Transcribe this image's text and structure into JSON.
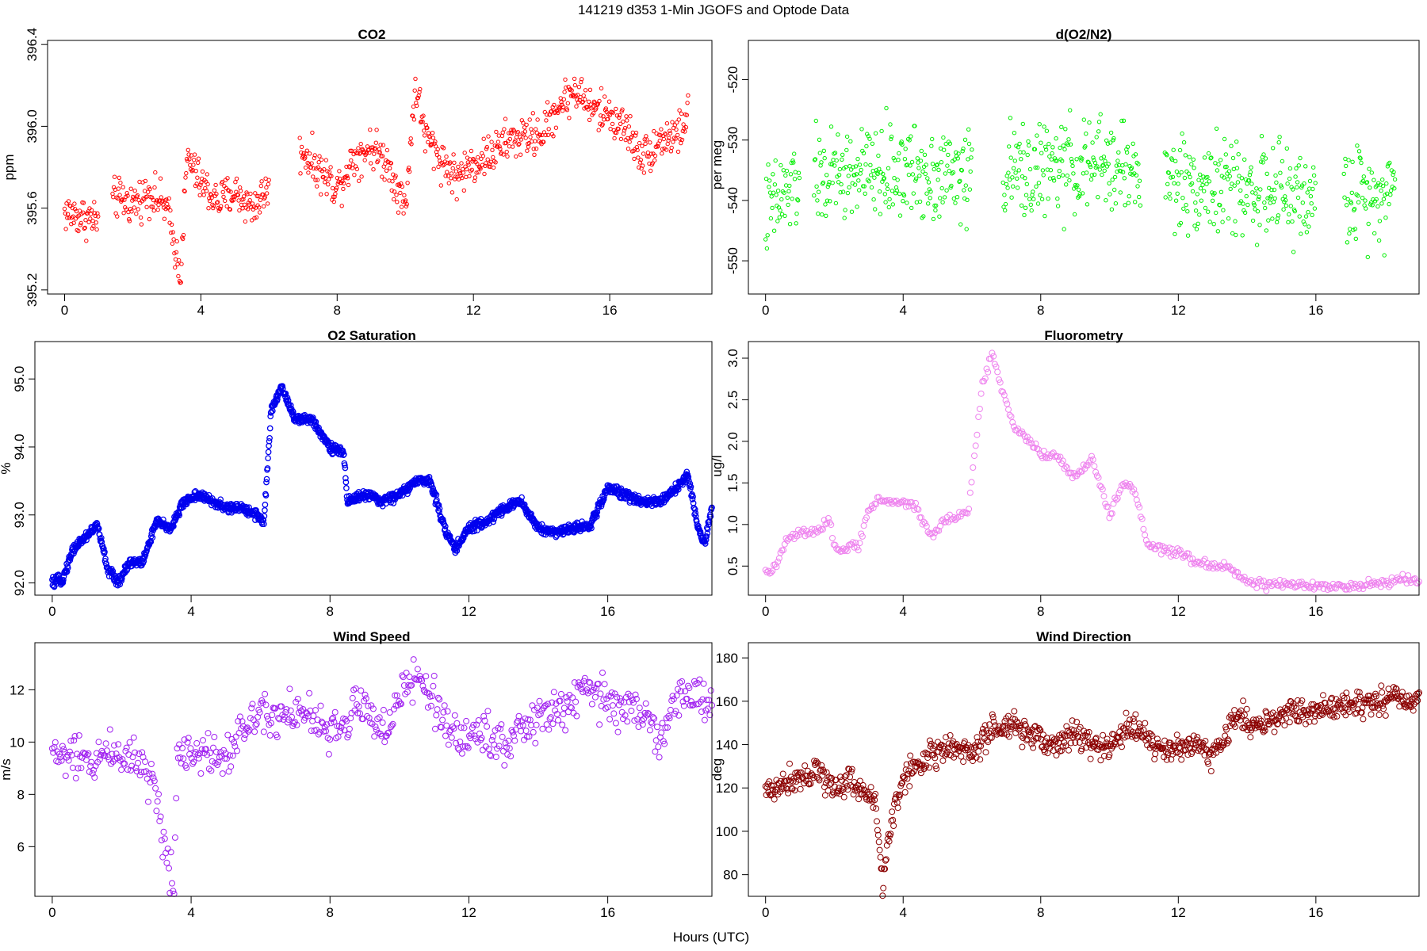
{
  "figure": {
    "title": "141219   d353   1-Min  JGOFS and Optode Data",
    "xlabel": "Hours (UTC)"
  },
  "chart_data": [
    {
      "id": "co2",
      "type": "scatter",
      "title": "CO2",
      "ylabel": "ppm",
      "color": "#ff0000",
      "xlim": [
        -0.5,
        19
      ],
      "ylim": [
        395.18,
        396.42
      ],
      "xticks": [
        0,
        4,
        8,
        12,
        16
      ],
      "yticks": [
        395.2,
        395.6,
        396.0,
        396.4
      ],
      "ytick_labels": [
        "395.2",
        "395.6",
        "396.0",
        "396.4"
      ],
      "ytick_rotated": true,
      "marker_size": 2.2,
      "stroke_width": 1,
      "x_range": [
        0,
        18.3
      ],
      "n_points": 950,
      "gaps": [
        [
          1.0,
          1.4
        ],
        [
          6.0,
          6.9
        ]
      ],
      "trend_x": [
        0,
        0.5,
        1,
        1.5,
        2,
        2.5,
        3,
        3.4,
        3.6,
        4,
        4.5,
        5,
        5.5,
        6,
        7,
        7.5,
        8,
        8.5,
        9,
        9.5,
        10,
        10.3,
        10.6,
        11,
        11.5,
        12,
        12.5,
        13,
        13.5,
        14,
        14.5,
        15,
        15.5,
        16,
        16.5,
        17,
        17.5,
        18,
        18.3
      ],
      "trend_y": [
        395.58,
        395.56,
        395.54,
        395.65,
        395.62,
        395.68,
        395.6,
        395.28,
        395.85,
        395.72,
        395.63,
        395.68,
        395.6,
        395.7,
        395.88,
        395.78,
        395.7,
        395.85,
        395.9,
        395.82,
        395.6,
        396.2,
        395.95,
        395.85,
        395.75,
        395.82,
        395.86,
        395.93,
        395.95,
        395.96,
        396.1,
        396.18,
        396.08,
        396.06,
        395.98,
        395.85,
        395.94,
        395.96,
        396.05
      ],
      "noise": 0.07,
      "x_offset": 0
    },
    {
      "id": "o2n2",
      "type": "scatter",
      "title": "d(O2/N2)",
      "ylabel": "per meg",
      "color": "#00ee00",
      "xlim": [
        -0.5,
        19
      ],
      "ylim": [
        -555.5,
        -513.5
      ],
      "xticks": [
        0,
        4,
        8,
        12,
        16
      ],
      "yticks": [
        -550,
        -540,
        -530,
        -520
      ],
      "ytick_labels": [
        "-550",
        "-540",
        "-530",
        "-520"
      ],
      "ytick_rotated": true,
      "marker_size": 2.2,
      "stroke_width": 1,
      "x_range": [
        0,
        18.3
      ],
      "n_points": 950,
      "gaps": [
        [
          1.0,
          1.4
        ],
        [
          6.0,
          6.9
        ],
        [
          10.9,
          11.6
        ],
        [
          16.0,
          16.8
        ]
      ],
      "trend_x": [
        0,
        1,
        2,
        4,
        6,
        8,
        10,
        12,
        14,
        16,
        18.3
      ],
      "trend_y": [
        -542,
        -537,
        -536,
        -535,
        -536,
        -535,
        -534,
        -537,
        -538,
        -540,
        -538
      ],
      "noise": 5.5,
      "x_offset": 0
    },
    {
      "id": "o2sat",
      "type": "scatter",
      "title": "O2 Saturation",
      "ylabel": "%",
      "color": "#0000ee",
      "xlim": [
        -0.5,
        19
      ],
      "ylim": [
        91.82,
        95.55
      ],
      "xticks": [
        0,
        4,
        8,
        12,
        16
      ],
      "yticks": [
        92.0,
        93.0,
        94.0,
        95.0
      ],
      "ytick_labels": [
        "92.0",
        "93.0",
        "94.0",
        "95.0"
      ],
      "ytick_rotated": true,
      "marker_size": 3.2,
      "stroke_width": 1.3,
      "x_range": [
        0,
        19
      ],
      "n_points": 1600,
      "gaps": [],
      "trend_x": [
        0,
        0.3,
        0.6,
        1.0,
        1.3,
        1.6,
        1.9,
        2.2,
        2.6,
        3.0,
        3.4,
        3.8,
        4.2,
        4.6,
        5.0,
        5.5,
        5.9,
        6.1,
        6.3,
        6.6,
        7.0,
        7.5,
        8.0,
        8.4,
        8.5,
        9.0,
        9.5,
        10.0,
        10.5,
        10.9,
        11.3,
        11.6,
        12.0,
        12.5,
        13.0,
        13.5,
        14.0,
        14.5,
        15.0,
        15.5,
        16.0,
        16.5,
        17.0,
        17.5,
        18.0,
        18.3,
        18.6,
        18.8,
        19.0
      ],
      "trend_y": [
        92.0,
        92.05,
        92.5,
        92.7,
        92.85,
        92.2,
        92.0,
        92.3,
        92.3,
        92.9,
        92.8,
        93.2,
        93.3,
        93.2,
        93.1,
        93.1,
        93.0,
        92.9,
        94.5,
        94.9,
        94.4,
        94.4,
        94.0,
        93.9,
        93.2,
        93.3,
        93.2,
        93.3,
        93.5,
        93.5,
        92.8,
        92.5,
        92.8,
        92.9,
        93.1,
        93.2,
        92.8,
        92.75,
        92.8,
        92.85,
        93.4,
        93.3,
        93.2,
        93.2,
        93.4,
        93.6,
        92.8,
        92.6,
        93.1
      ],
      "noise": 0.05,
      "x_offset": 0
    },
    {
      "id": "fluor",
      "type": "scatter",
      "title": "Fluorometry",
      "ylabel": "ug/l",
      "color": "#ee82ee",
      "xlim": [
        -0.5,
        19
      ],
      "ylim": [
        0.15,
        3.2
      ],
      "xticks": [
        0,
        4,
        8,
        12,
        16
      ],
      "yticks": [
        0.5,
        1.0,
        1.5,
        2.0,
        2.5,
        3.0
      ],
      "ytick_labels": [
        "0.5",
        "1.0",
        "1.5",
        "2.0",
        "2.5",
        "3.0"
      ],
      "ytick_rotated": true,
      "marker_size": 3.5,
      "stroke_width": 1,
      "x_range": [
        0,
        19
      ],
      "n_points": 480,
      "gaps": [],
      "trend_x": [
        0,
        0.3,
        0.6,
        1.0,
        1.5,
        1.9,
        2.0,
        2.3,
        2.7,
        3.0,
        3.4,
        3.8,
        4.0,
        4.4,
        4.8,
        5.1,
        5.5,
        5.9,
        6.3,
        6.6,
        6.9,
        7.3,
        7.6,
        8.0,
        8.5,
        9.0,
        9.5,
        10.0,
        10.4,
        10.7,
        11.1,
        11.5,
        12.0,
        12.5,
        13.0,
        13.5,
        14.0,
        14.5,
        15.0,
        15.5,
        16.0,
        16.5,
        17.0,
        17.5,
        18.0,
        18.5,
        19.0
      ],
      "trend_y": [
        0.4,
        0.5,
        0.8,
        0.9,
        0.9,
        1.05,
        0.7,
        0.7,
        0.75,
        1.2,
        1.3,
        1.25,
        1.28,
        1.2,
        0.85,
        1.0,
        1.1,
        1.15,
        2.7,
        3.05,
        2.6,
        2.1,
        2.05,
        1.85,
        1.8,
        1.55,
        1.8,
        1.1,
        1.5,
        1.45,
        0.75,
        0.7,
        0.65,
        0.55,
        0.5,
        0.5,
        0.3,
        0.28,
        0.27,
        0.27,
        0.25,
        0.28,
        0.25,
        0.27,
        0.3,
        0.35,
        0.28
      ],
      "noise": 0.04,
      "x_offset": 0
    },
    {
      "id": "wspd",
      "type": "scatter",
      "title": "Wind Speed",
      "ylabel": "m/s",
      "color": "#a020f0",
      "xlim": [
        -0.5,
        19
      ],
      "ylim": [
        4.1,
        13.8
      ],
      "xticks": [
        0,
        4,
        8,
        12,
        16
      ],
      "yticks": [
        6,
        8,
        10,
        12
      ],
      "ytick_labels": [
        "6",
        "8",
        "10",
        "12"
      ],
      "ytick_rotated": false,
      "marker_size": 3.5,
      "stroke_width": 1,
      "x_range": [
        0,
        19
      ],
      "n_points": 640,
      "gaps": [],
      "trend_x": [
        0,
        0.5,
        1.0,
        1.5,
        2.0,
        2.5,
        2.9,
        3.2,
        3.5,
        3.6,
        4.0,
        4.5,
        5.0,
        5.5,
        6.0,
        6.5,
        7.0,
        7.5,
        8.0,
        8.5,
        9.0,
        9.5,
        10.0,
        10.5,
        11.0,
        11.5,
        12.0,
        12.5,
        13.0,
        13.5,
        14.0,
        14.5,
        15.0,
        15.5,
        16.0,
        16.5,
        17.0,
        17.5,
        18.0,
        18.5,
        19.0
      ],
      "trend_y": [
        9.6,
        9.4,
        9.2,
        9.6,
        9.6,
        9.3,
        8.6,
        6.2,
        4.6,
        9.6,
        9.8,
        9.5,
        9.6,
        10.4,
        11.4,
        11.0,
        11.3,
        10.8,
        10.3,
        10.8,
        11.6,
        10.3,
        11.6,
        12.5,
        11.6,
        10.3,
        10.2,
        10.4,
        10.0,
        10.4,
        10.9,
        11.1,
        11.6,
        11.9,
        11.6,
        11.3,
        11.0,
        10.3,
        11.6,
        11.8,
        11.6
      ],
      "noise": 0.6,
      "x_offset": 0
    },
    {
      "id": "wdir",
      "type": "scatter",
      "title": "Wind Direction",
      "ylabel": "deg",
      "color": "#8b0000",
      "xlim": [
        -0.5,
        19
      ],
      "ylim": [
        70,
        187
      ],
      "xticks": [
        0,
        4,
        8,
        12,
        16
      ],
      "yticks": [
        80,
        100,
        120,
        140,
        160,
        180
      ],
      "ytick_labels": [
        "80",
        "100",
        "120",
        "140",
        "160",
        "180"
      ],
      "ytick_rotated": false,
      "marker_size": 3.5,
      "stroke_width": 1,
      "x_range": [
        0,
        19
      ],
      "n_points": 900,
      "gaps": [],
      "trend_x": [
        0,
        0.5,
        1.0,
        1.5,
        2.0,
        2.5,
        2.9,
        3.2,
        3.4,
        3.6,
        3.9,
        4.3,
        5.0,
        5.5,
        6.0,
        6.5,
        7.0,
        7.5,
        8.0,
        8.5,
        9.0,
        9.5,
        10.0,
        10.5,
        11.0,
        11.5,
        12.0,
        12.5,
        13.0,
        13.3,
        13.6,
        14.0,
        14.5,
        15.0,
        15.5,
        16.0,
        16.5,
        17.0,
        17.5,
        18.0,
        18.5,
        19.0
      ],
      "trend_y": [
        118,
        122,
        126,
        128,
        120,
        124,
        118,
        112,
        76,
        100,
        120,
        130,
        137,
        138,
        136,
        145,
        148,
        146,
        142,
        140,
        146,
        140,
        138,
        148,
        145,
        138,
        137,
        142,
        135,
        140,
        154,
        150,
        150,
        153,
        156,
        155,
        157,
        158,
        160,
        160,
        162,
        161
      ],
      "noise": 4.5,
      "x_offset": 0
    }
  ]
}
